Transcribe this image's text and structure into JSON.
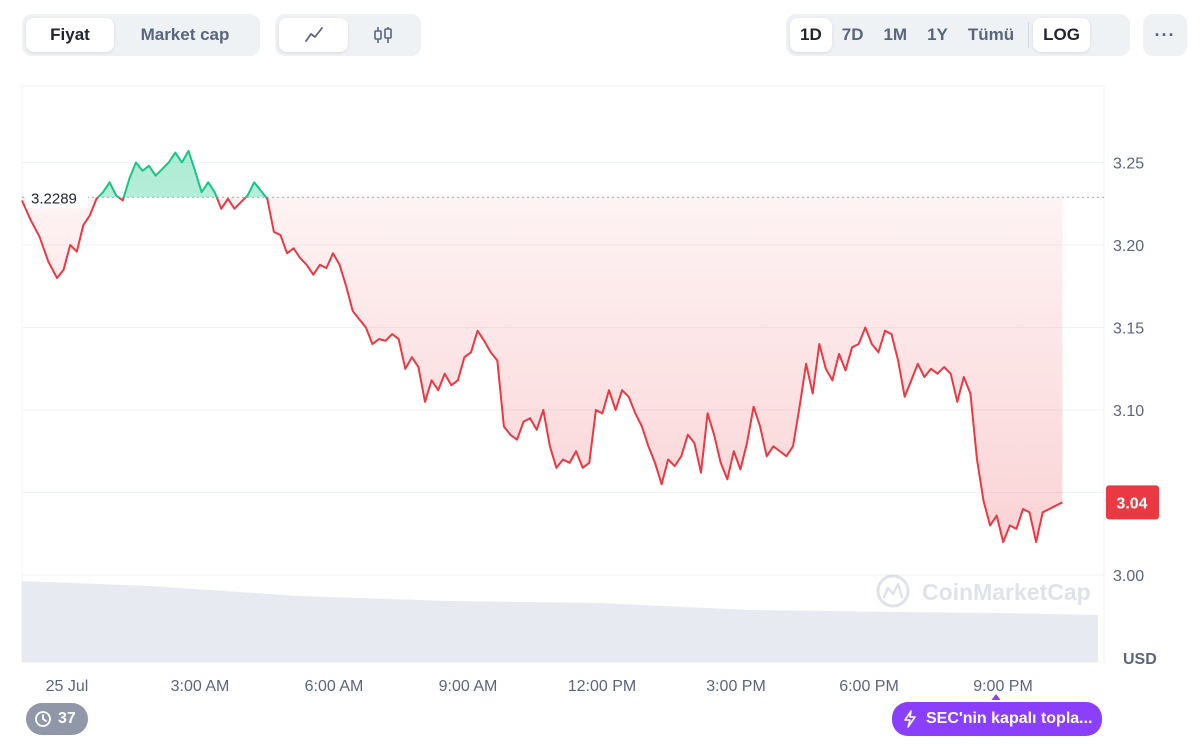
{
  "toolbar": {
    "metric_tabs": [
      {
        "label": "Fiyat",
        "active": true
      },
      {
        "label": "Market cap",
        "active": false
      }
    ],
    "chart_types": [
      {
        "icon": "line-chart-icon",
        "active": true
      },
      {
        "icon": "candlestick-icon",
        "active": false
      }
    ],
    "ranges": [
      {
        "label": "1D",
        "active": true
      },
      {
        "label": "7D",
        "active": false
      },
      {
        "label": "1M",
        "active": false
      },
      {
        "label": "1Y",
        "active": false
      },
      {
        "label": "Tümü",
        "active": false
      }
    ],
    "log_label": "LOG",
    "more_label": "···"
  },
  "chart_data": {
    "type": "line",
    "title": "",
    "xlabel": "",
    "ylabel": "USD",
    "x_ticks": [
      "25 Jul",
      "3:00 AM",
      "6:00 AM",
      "9:00 AM",
      "12:00 PM",
      "3:00 PM",
      "6:00 PM",
      "9:00 PM"
    ],
    "y_ticks": [
      3.0,
      3.05,
      3.1,
      3.15,
      3.2,
      3.25
    ],
    "y_tick_labels": [
      "3.00",
      "",
      "3.10",
      "3.15",
      "3.20",
      "3.25"
    ],
    "ylim": [
      2.995,
      3.3
    ],
    "xlim_hours": [
      0,
      24.7
    ],
    "reference_price": 3.2289,
    "reference_label": "3.2289",
    "current_price_label": "3.04",
    "grid": true,
    "colors": {
      "up": "#16c784",
      "down": "#ea3943",
      "grid": "#eff2f5",
      "volume": "#e3e7ee"
    },
    "series": [
      {
        "points": [
          [
            0.0,
            3.227
          ],
          [
            0.2,
            3.215
          ],
          [
            0.4,
            3.205
          ],
          [
            0.6,
            3.19
          ],
          [
            0.8,
            3.18
          ],
          [
            0.95,
            3.185
          ],
          [
            1.1,
            3.2
          ],
          [
            1.25,
            3.196
          ],
          [
            1.4,
            3.212
          ],
          [
            1.55,
            3.218
          ],
          [
            1.7,
            3.228
          ],
          [
            1.85,
            3.232
          ],
          [
            2.0,
            3.238
          ],
          [
            2.15,
            3.23
          ],
          [
            2.3,
            3.227
          ],
          [
            2.45,
            3.24
          ],
          [
            2.6,
            3.25
          ],
          [
            2.75,
            3.245
          ],
          [
            2.9,
            3.248
          ],
          [
            3.05,
            3.242
          ],
          [
            3.2,
            3.246
          ],
          [
            3.35,
            3.25
          ],
          [
            3.5,
            3.256
          ],
          [
            3.65,
            3.25
          ],
          [
            3.8,
            3.257
          ],
          [
            3.95,
            3.245
          ],
          [
            4.1,
            3.232
          ],
          [
            4.25,
            3.238
          ],
          [
            4.4,
            3.232
          ],
          [
            4.55,
            3.222
          ],
          [
            4.7,
            3.228
          ],
          [
            4.85,
            3.222
          ],
          [
            5.0,
            3.226
          ],
          [
            5.15,
            3.23
          ],
          [
            5.3,
            3.238
          ],
          [
            5.45,
            3.233
          ],
          [
            5.6,
            3.228
          ],
          [
            5.75,
            3.208
          ],
          [
            5.9,
            3.206
          ],
          [
            6.05,
            3.195
          ],
          [
            6.2,
            3.198
          ],
          [
            6.35,
            3.192
          ],
          [
            6.5,
            3.188
          ],
          [
            6.65,
            3.182
          ],
          [
            6.8,
            3.188
          ],
          [
            6.95,
            3.186
          ],
          [
            7.1,
            3.195
          ],
          [
            7.25,
            3.188
          ],
          [
            7.4,
            3.175
          ],
          [
            7.55,
            3.16
          ],
          [
            7.7,
            3.155
          ],
          [
            7.85,
            3.15
          ],
          [
            8.0,
            3.14
          ],
          [
            8.15,
            3.143
          ],
          [
            8.3,
            3.142
          ],
          [
            8.45,
            3.146
          ],
          [
            8.6,
            3.143
          ],
          [
            8.75,
            3.125
          ],
          [
            8.9,
            3.132
          ],
          [
            9.05,
            3.126
          ],
          [
            9.2,
            3.105
          ],
          [
            9.35,
            3.118
          ],
          [
            9.5,
            3.112
          ],
          [
            9.65,
            3.122
          ],
          [
            9.8,
            3.115
          ],
          [
            9.95,
            3.118
          ],
          [
            10.1,
            3.132
          ],
          [
            10.25,
            3.135
          ],
          [
            10.4,
            3.148
          ],
          [
            10.55,
            3.142
          ],
          [
            10.7,
            3.135
          ],
          [
            10.85,
            3.13
          ],
          [
            11.0,
            3.09
          ],
          [
            11.15,
            3.085
          ],
          [
            11.3,
            3.082
          ],
          [
            11.45,
            3.093
          ],
          [
            11.6,
            3.095
          ],
          [
            11.75,
            3.088
          ],
          [
            11.9,
            3.1
          ],
          [
            12.05,
            3.078
          ],
          [
            12.2,
            3.065
          ],
          [
            12.35,
            3.07
          ],
          [
            12.5,
            3.068
          ],
          [
            12.65,
            3.075
          ],
          [
            12.8,
            3.065
          ],
          [
            12.95,
            3.068
          ],
          [
            13.1,
            3.1
          ],
          [
            13.25,
            3.098
          ],
          [
            13.4,
            3.112
          ],
          [
            13.55,
            3.1
          ],
          [
            13.7,
            3.112
          ],
          [
            13.85,
            3.108
          ],
          [
            14.0,
            3.098
          ],
          [
            14.15,
            3.09
          ],
          [
            14.3,
            3.078
          ],
          [
            14.45,
            3.068
          ],
          [
            14.6,
            3.055
          ],
          [
            14.75,
            3.07
          ],
          [
            14.9,
            3.066
          ],
          [
            15.05,
            3.072
          ],
          [
            15.2,
            3.085
          ],
          [
            15.35,
            3.08
          ],
          [
            15.5,
            3.062
          ],
          [
            15.65,
            3.098
          ],
          [
            15.8,
            3.085
          ],
          [
            15.95,
            3.068
          ],
          [
            16.1,
            3.058
          ],
          [
            16.25,
            3.075
          ],
          [
            16.4,
            3.064
          ],
          [
            16.55,
            3.08
          ],
          [
            16.7,
            3.102
          ],
          [
            16.85,
            3.09
          ],
          [
            17.0,
            3.072
          ],
          [
            17.15,
            3.078
          ],
          [
            17.3,
            3.075
          ],
          [
            17.45,
            3.072
          ],
          [
            17.6,
            3.078
          ],
          [
            17.75,
            3.102
          ],
          [
            17.9,
            3.128
          ],
          [
            18.05,
            3.11
          ],
          [
            18.2,
            3.14
          ],
          [
            18.35,
            3.125
          ],
          [
            18.5,
            3.118
          ],
          [
            18.65,
            3.134
          ],
          [
            18.8,
            3.124
          ],
          [
            18.95,
            3.138
          ],
          [
            19.1,
            3.14
          ],
          [
            19.25,
            3.15
          ],
          [
            19.4,
            3.14
          ],
          [
            19.55,
            3.135
          ],
          [
            19.7,
            3.148
          ],
          [
            19.85,
            3.146
          ],
          [
            20.0,
            3.13
          ],
          [
            20.15,
            3.108
          ],
          [
            20.3,
            3.118
          ],
          [
            20.45,
            3.128
          ],
          [
            20.6,
            3.12
          ],
          [
            20.75,
            3.125
          ],
          [
            20.9,
            3.122
          ],
          [
            21.05,
            3.126
          ],
          [
            21.2,
            3.122
          ],
          [
            21.35,
            3.105
          ],
          [
            21.5,
            3.12
          ],
          [
            21.65,
            3.11
          ],
          [
            21.8,
            3.07
          ],
          [
            21.95,
            3.045
          ],
          [
            22.1,
            3.03
          ],
          [
            22.25,
            3.036
          ],
          [
            22.4,
            3.02
          ],
          [
            22.55,
            3.03
          ],
          [
            22.7,
            3.028
          ],
          [
            22.85,
            3.04
          ],
          [
            23.0,
            3.038
          ],
          [
            23.15,
            3.02
          ],
          [
            23.3,
            3.038
          ],
          [
            23.45,
            3.04
          ],
          [
            23.6,
            3.042
          ],
          [
            23.75,
            3.044
          ]
        ]
      }
    ]
  },
  "history_count": "37",
  "news_label": "SEC'nin kapalı topla..."
}
